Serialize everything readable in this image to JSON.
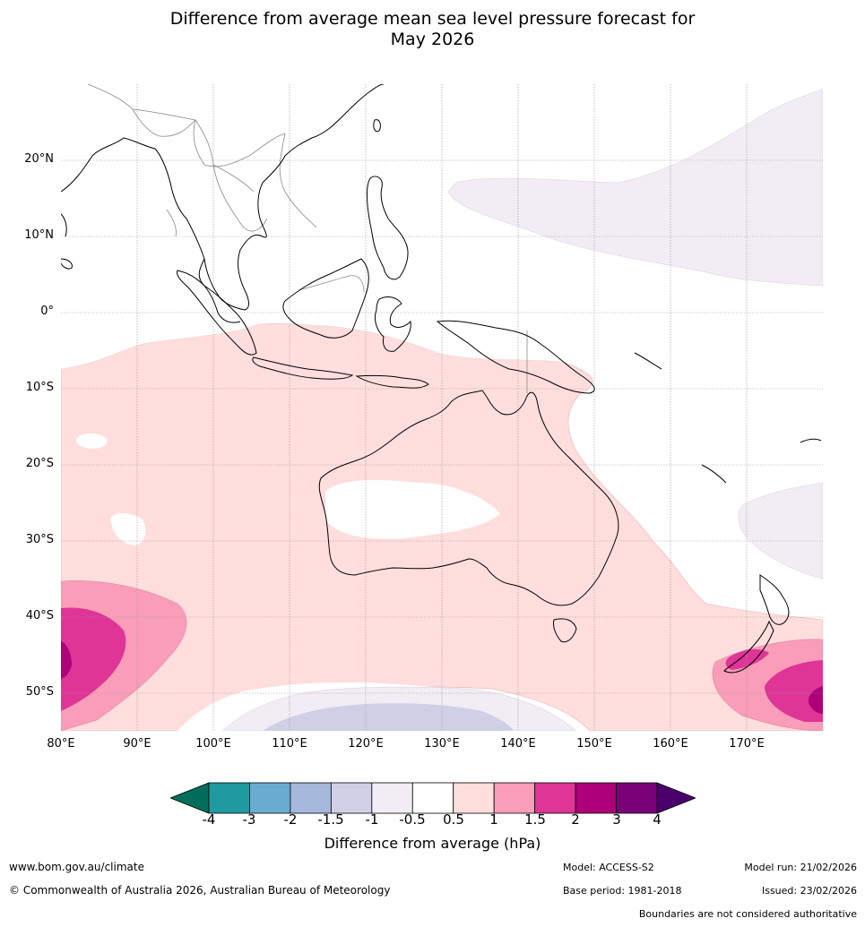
{
  "title": {
    "line1": "Difference from average mean sea level pressure forecast for",
    "line2": "May 2026"
  },
  "map": {
    "lat_labels": [
      "20°N",
      "10°N",
      "0°",
      "10°S",
      "20°S",
      "30°S",
      "40°S",
      "50°S"
    ],
    "lat_values": [
      20,
      10,
      0,
      -10,
      -20,
      -30,
      -40,
      -50
    ],
    "lon_labels": [
      "80°E",
      "90°E",
      "100°E",
      "110°E",
      "120°E",
      "130°E",
      "140°E",
      "150°E",
      "160°E",
      "170°E"
    ],
    "lon_values": [
      80,
      90,
      100,
      110,
      120,
      130,
      140,
      150,
      160,
      170
    ],
    "extent": {
      "lon": [
        80,
        180
      ],
      "lat": [
        -55,
        30
      ]
    },
    "coastline_color": "#000000",
    "border_color": "#888888",
    "grid_color": "#999999"
  },
  "colorbar": {
    "ticks": [
      "-4",
      "-3",
      "-2",
      "-1.5",
      "-1",
      "-0.5",
      "0.5",
      "1",
      "1.5",
      "2",
      "3",
      "4"
    ],
    "colors": [
      "#006e5a",
      "#1f9aa0",
      "#6aabd2",
      "#a6b8dc",
      "#cfd0e6",
      "#f2ecf5",
      "#ffffff",
      "#ffdedd",
      "#f99db9",
      "#de3597",
      "#ae0078",
      "#7a0178",
      "#4a006a"
    ],
    "label": "Difference from average (hPa)"
  },
  "footer": {
    "website": "www.bom.gov.au/climate",
    "copyright": "© Commonwealth of Australia 2026, Australian Bureau of Meteorology",
    "model": "Model: ACCESS-S2",
    "base_period": "Base period: 1981-2018",
    "model_run": "Model run: 21/02/2026",
    "issued": "Issued: 23/02/2026",
    "disclaimer": "Boundaries are not considered authoritative"
  }
}
